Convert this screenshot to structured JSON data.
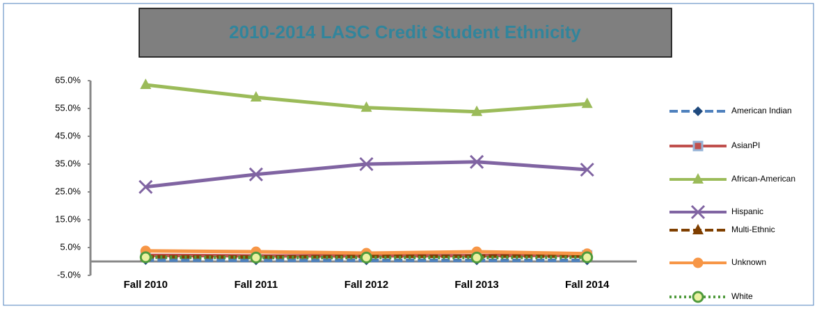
{
  "chart_data": {
    "type": "line",
    "title": "2010-2014 LASC Credit Student Ethnicity",
    "categories": [
      "Fall 2010",
      "Fall 2011",
      "Fall 2012",
      "Fall 2013",
      "Fall 2014"
    ],
    "series": [
      {
        "name": "American Indian",
        "color": "#4f81bd",
        "marker": "diamond",
        "dash": "dashed",
        "values": [
          0.5,
          0.4,
          0.4,
          0.4,
          0.4
        ]
      },
      {
        "name": "AsianPI",
        "color": "#c0504d",
        "marker": "square",
        "values": [
          2.2,
          2.0,
          2.0,
          2.1,
          2.2
        ]
      },
      {
        "name": "African-American",
        "color": "#9bbb59",
        "marker": "triangle",
        "values": [
          63.5,
          59.0,
          55.3,
          53.8,
          56.7
        ]
      },
      {
        "name": "Hispanic",
        "color": "#8064a2",
        "marker": "x",
        "values": [
          26.8,
          31.3,
          35.0,
          35.8,
          33.0
        ]
      },
      {
        "name": "Multi-Ethnic",
        "color": "#7f3f00",
        "marker": "triangle",
        "dash": "dashed",
        "values": [
          1.7,
          1.6,
          1.8,
          1.9,
          1.9
        ]
      },
      {
        "name": "Unknown",
        "color": "#f79646",
        "marker": "circle",
        "values": [
          3.8,
          3.5,
          3.0,
          3.5,
          2.8
        ]
      },
      {
        "name": "White",
        "color": "#4f9a3c",
        "marker": "circle",
        "dash": "dotted",
        "values": [
          1.5,
          1.4,
          1.4,
          1.4,
          1.5
        ]
      }
    ],
    "ylim": [
      -5,
      65
    ],
    "yticks": [
      {
        "value": -5,
        "label": "-5.0%"
      },
      {
        "value": 5,
        "label": "5.0%"
      },
      {
        "value": 15,
        "label": "15.0%"
      },
      {
        "value": 25,
        "label": "25.0%"
      },
      {
        "value": 35,
        "label": "35.0%"
      },
      {
        "value": 45,
        "label": "45.0%"
      },
      {
        "value": 55,
        "label": "55.0%"
      },
      {
        "value": 65,
        "label": "65.0%"
      }
    ],
    "legend": "right"
  }
}
